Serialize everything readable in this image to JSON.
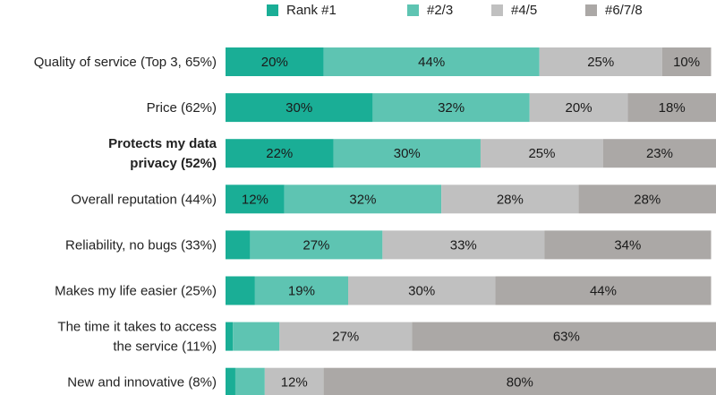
{
  "chart_data": {
    "type": "bar",
    "orientation": "horizontal",
    "stacked": true,
    "title": "",
    "xlabel": "",
    "ylabel": "",
    "xlim": [
      0,
      100
    ],
    "legend_position": "top",
    "categories": [
      {
        "text": "Quality of service (Top 3, 65%)",
        "lines": [
          "Quality of service (Top 3, 65%)"
        ],
        "bold": false
      },
      {
        "text": "Price (62%)",
        "lines": [
          "Price (62%)"
        ],
        "bold": false
      },
      {
        "text": "Protects my data privacy (52%)",
        "lines": [
          "Protects my data",
          "privacy (52%)"
        ],
        "bold": true
      },
      {
        "text": "Overall reputation (44%)",
        "lines": [
          "Overall reputation (44%)"
        ],
        "bold": false
      },
      {
        "text": "Reliability, no bugs (33%)",
        "lines": [
          "Reliability, no bugs (33%)"
        ],
        "bold": false
      },
      {
        "text": "Makes my life easier (25%)",
        "lines": [
          "Makes my life easier (25%)"
        ],
        "bold": false
      },
      {
        "text": "The time it takes to access the service (11%)",
        "lines": [
          "The time it takes to access",
          "the service (11%)"
        ],
        "bold": false
      },
      {
        "text": "New and innovative (8%)",
        "lines": [
          "New and innovative (8%)"
        ],
        "bold": false
      }
    ],
    "series": [
      {
        "name": "Rank #1",
        "color": "#1aae96",
        "values": [
          20,
          30,
          22,
          12,
          5,
          6,
          1.5,
          2
        ],
        "labels": [
          "20%",
          "30%",
          "22%",
          "12%",
          "",
          "",
          "",
          ""
        ]
      },
      {
        "name": "#2/3",
        "color": "#5ec4b2",
        "values": [
          44,
          32,
          30,
          32,
          27,
          19,
          9.5,
          6
        ],
        "labels": [
          "44%",
          "32%",
          "30%",
          "32%",
          "27%",
          "19%",
          "",
          ""
        ]
      },
      {
        "name": "#4/5",
        "color": "#c0c0c0",
        "values": [
          25,
          20,
          25,
          28,
          33,
          30,
          27,
          12
        ],
        "labels": [
          "25%",
          "20%",
          "25%",
          "28%",
          "33%",
          "30%",
          "27%",
          "12%"
        ]
      },
      {
        "name": "#6/7/8",
        "color": "#aba8a6",
        "values": [
          10,
          18,
          23,
          28,
          34,
          44,
          63,
          80
        ],
        "labels": [
          "10%",
          "18%",
          "23%",
          "28%",
          "34%",
          "44%",
          "63%",
          "80%"
        ]
      }
    ]
  }
}
